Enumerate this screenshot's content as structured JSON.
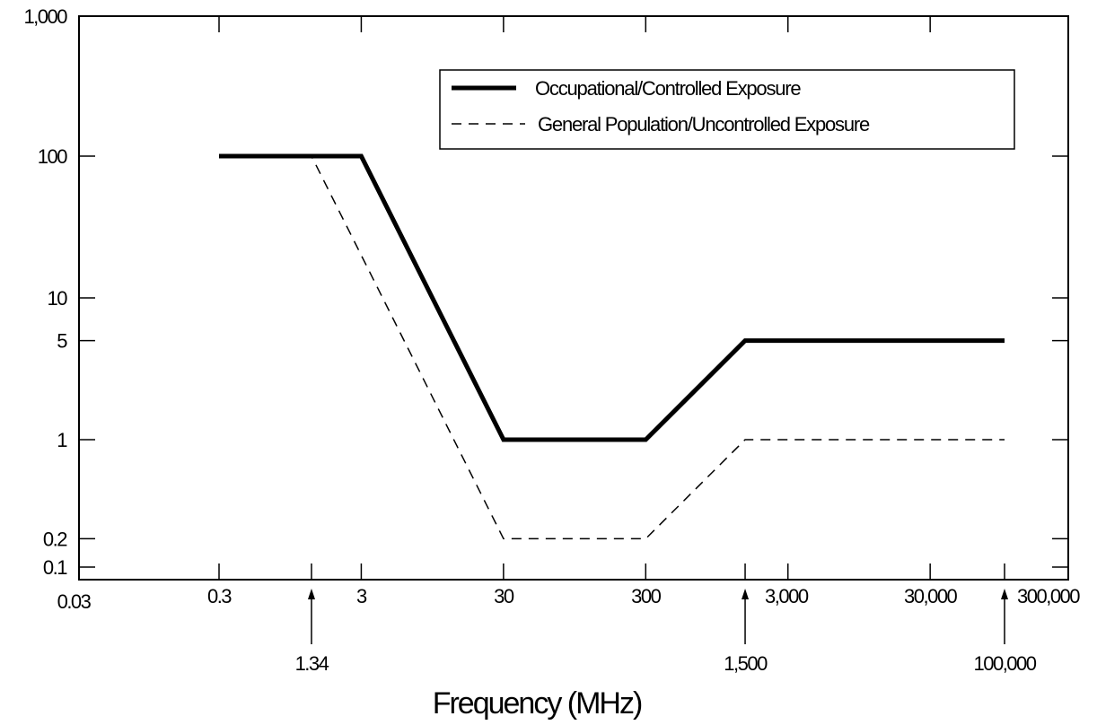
{
  "chart_data": {
    "type": "line",
    "title": "",
    "xlabel": "Frequency (MHz)",
    "ylabel": "",
    "x_scale": "log",
    "y_scale": "log",
    "xlim": [
      0.03,
      300000
    ],
    "ylim": [
      0.1,
      1000
    ],
    "x_ticks": [
      {
        "value": 0.03,
        "label": "0.03"
      },
      {
        "value": 0.3,
        "label": "0.3"
      },
      {
        "value": 3,
        "label": "3"
      },
      {
        "value": 30,
        "label": "30"
      },
      {
        "value": 300,
        "label": "300"
      },
      {
        "value": 3000,
        "label": "3,000"
      },
      {
        "value": 30000,
        "label": "30,000"
      },
      {
        "value": 300000,
        "label": "300,000"
      }
    ],
    "x_annotations": [
      {
        "value": 1.34,
        "label": "1.34"
      },
      {
        "value": 1500,
        "label": "1,500"
      },
      {
        "value": 100000,
        "label": "100,000"
      }
    ],
    "y_ticks": [
      {
        "value": 0.1,
        "label": "0.1"
      },
      {
        "value": 0.2,
        "label": "0.2"
      },
      {
        "value": 1,
        "label": "1"
      },
      {
        "value": 5,
        "label": "5"
      },
      {
        "value": 10,
        "label": "10"
      },
      {
        "value": 100,
        "label": "100"
      },
      {
        "value": 1000,
        "label": "1,000"
      }
    ],
    "grid": false,
    "legend": "top-right",
    "series": [
      {
        "name": "Occupational/Controlled Exposure",
        "style": "solid-thick",
        "color": "#000000",
        "points": [
          [
            0.3,
            100
          ],
          [
            3,
            100
          ],
          [
            30,
            1
          ],
          [
            300,
            1
          ],
          [
            1500,
            5
          ],
          [
            100000,
            5
          ]
        ]
      },
      {
        "name": "General Population/Uncontrolled Exposure",
        "style": "dashed",
        "color": "#000000",
        "points": [
          [
            0.3,
            100
          ],
          [
            1.34,
            100
          ],
          [
            30,
            0.2
          ],
          [
            300,
            0.2
          ],
          [
            1500,
            1
          ],
          [
            100000,
            1
          ]
        ]
      }
    ]
  }
}
